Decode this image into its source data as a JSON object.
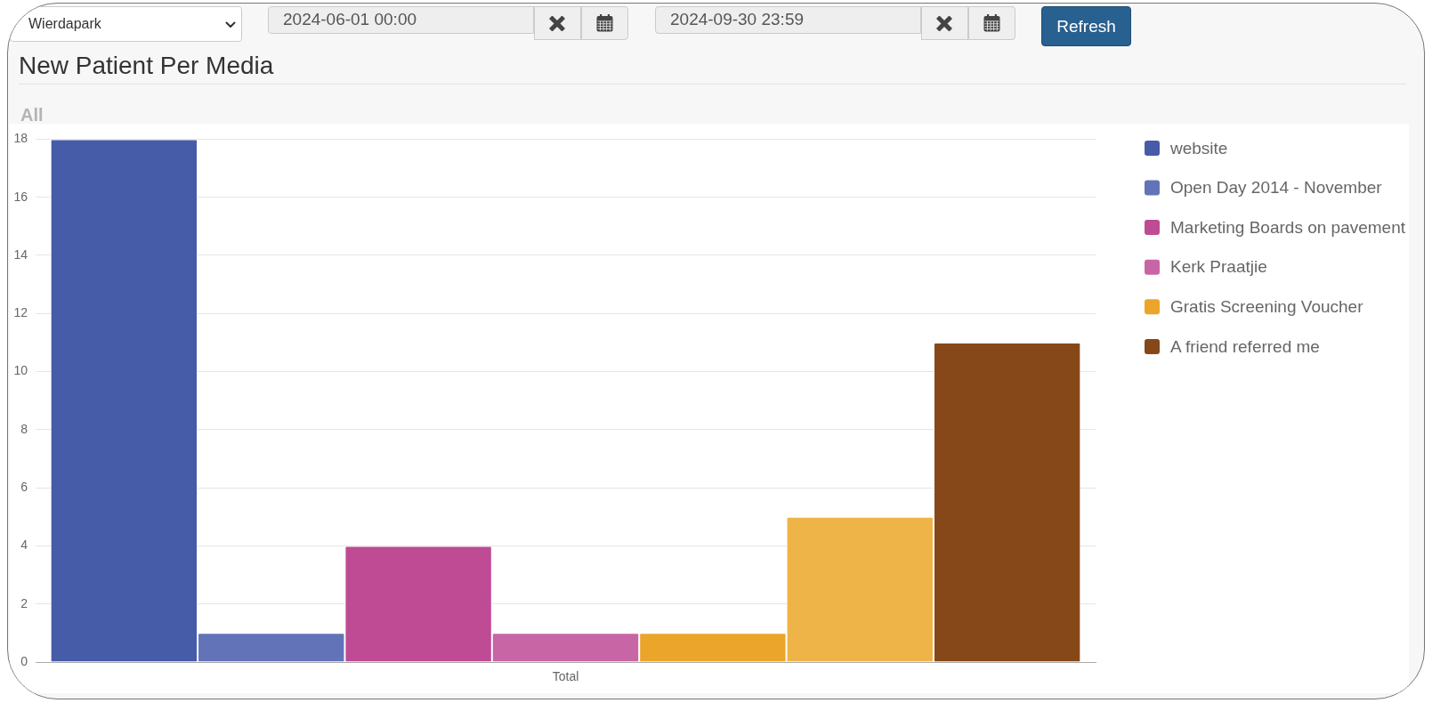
{
  "chart_data": {
    "type": "bar",
    "title": "New Patient Per Media",
    "subtitle": "All",
    "categories": [
      "Total"
    ],
    "series": [
      {
        "name": "website",
        "color": "#465ca8",
        "values": [
          18
        ]
      },
      {
        "name": "Open Day 2014 - November",
        "color": "#6274b7",
        "values": [
          1
        ]
      },
      {
        "name": "Marketing Boards on pavement",
        "color": "#bf4b94",
        "values": [
          4
        ]
      },
      {
        "name": "Kerk Praatjie",
        "color": "#c865a5",
        "values": [
          1
        ]
      },
      {
        "name": "Gratis Screening Voucher",
        "color": "#eba52a",
        "values": [
          1
        ]
      },
      {
        "color": "#efb448",
        "values": [
          5
        ]
      },
      {
        "name": "A friend referred me",
        "color": "#874819",
        "values": [
          11
        ]
      }
    ],
    "ylim": [
      0,
      18
    ],
    "yticks": [
      0,
      2,
      4,
      6,
      8,
      10,
      12,
      14,
      16,
      18
    ],
    "grid": "y",
    "legend": "right",
    "annotations": [
      "Wierdapark",
      "2024-06-01 00:00",
      "2024-09-30 23:59",
      "Refresh"
    ]
  }
}
